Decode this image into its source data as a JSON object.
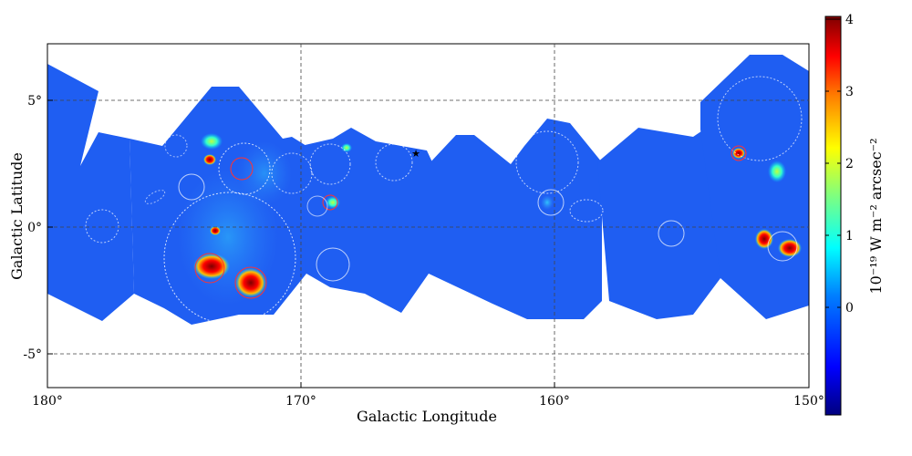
{
  "plot": {
    "xlabel": "Galactic Longitude",
    "ylabel": "Galactic Latitude",
    "x_ticks": [
      "180°",
      "170°",
      "160°",
      "150°"
    ],
    "y_ticks": [
      "5°",
      "0°",
      "-5°"
    ],
    "x_range_deg": [
      180,
      150
    ],
    "y_range_deg": [
      -6.3,
      7.3
    ],
    "gridlines": "dashed",
    "star_marker": "★"
  },
  "colorbar": {
    "label": "10⁻¹⁹ W m⁻² arcsec⁻²",
    "ticks": [
      "4",
      "3",
      "2",
      "1",
      "0"
    ],
    "colormap": "jet",
    "colors": [
      "#00007f",
      "#0000ff",
      "#007fff",
      "#00ffff",
      "#7fff7f",
      "#ffff00",
      "#ff7f00",
      "#ff0000",
      "#7f0000"
    ]
  },
  "colors": {
    "background_map": "#1f5ef2",
    "gridline": "#444444"
  }
}
